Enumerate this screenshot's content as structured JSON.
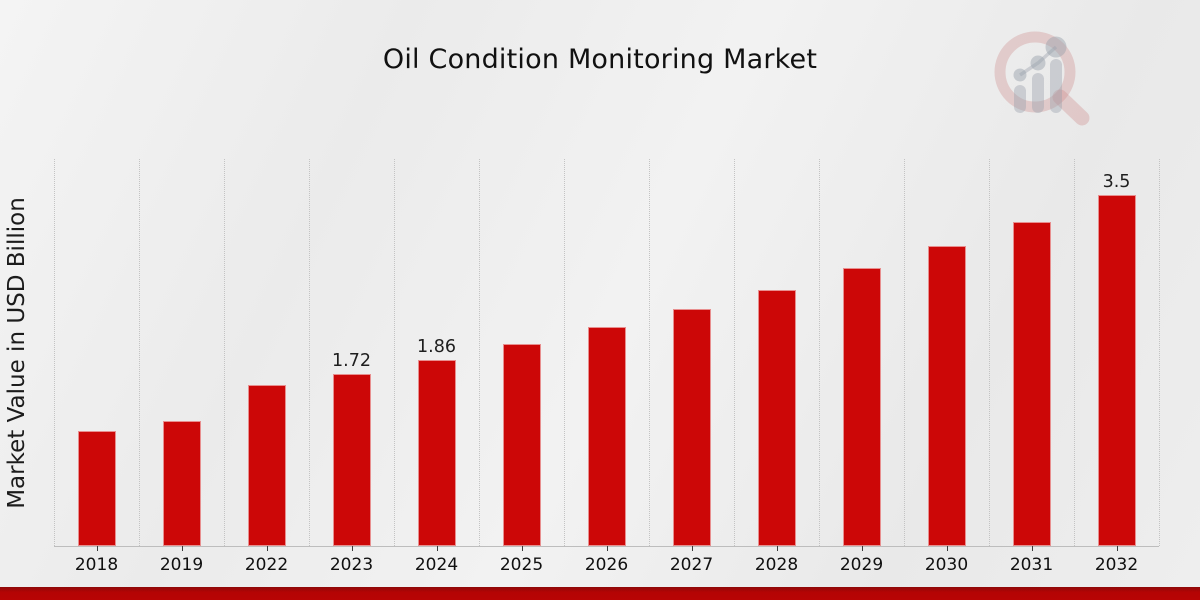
{
  "page": {
    "title": "Oil Condition Monitoring Market"
  },
  "watermark": {
    "description": "magnifying-glass-bar-chart-logo",
    "ring_color": "rgba(202,128,128,0.32)",
    "bars_color": "rgba(150,158,170,0.42)"
  },
  "footer": {
    "band_color": "#b80404"
  },
  "chart_data": {
    "type": "bar",
    "title": "Oil Condition Monitoring Market",
    "xlabel": "",
    "ylabel": "Market Value in USD Billion",
    "categories": [
      "2018",
      "2019",
      "2022",
      "2023",
      "2024",
      "2025",
      "2026",
      "2027",
      "2028",
      "2029",
      "2030",
      "2031",
      "2032"
    ],
    "values": [
      1.15,
      1.25,
      1.61,
      1.72,
      1.86,
      2.01,
      2.18,
      2.36,
      2.55,
      2.77,
      2.99,
      3.23,
      3.5
    ],
    "data_labels": {
      "2023": "1.72",
      "2024": "1.86",
      "2032": "3.5"
    },
    "ylim": [
      0,
      3.86
    ],
    "bar_color": "#cc0707",
    "grid": {
      "vertical": true,
      "style": "dotted",
      "color": "#c3c3c3",
      "horizontal": false
    },
    "legend": "none"
  }
}
